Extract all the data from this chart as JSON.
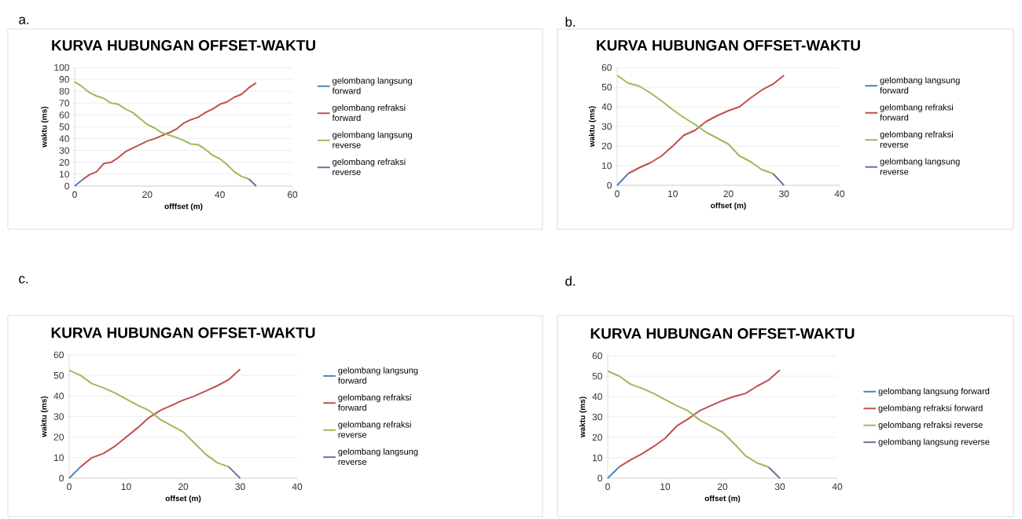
{
  "chart_data": [
    {
      "type": "line",
      "title": "KURVA HUBUNGAN OFFSET-WAKTU",
      "xlabel": "offfset (m)",
      "ylabel": "waktu (ms)",
      "annotations": [
        "a."
      ],
      "xlim": [
        0,
        60
      ],
      "ylim": [
        0,
        100
      ],
      "xticks": [
        0,
        20,
        40,
        60
      ],
      "yticks": [
        0,
        10,
        20,
        30,
        40,
        50,
        60,
        70,
        80,
        90,
        100
      ],
      "grid": "y",
      "legend": "right",
      "series": [
        {
          "name": "gelombang langsung forward",
          "color": "#4f81bd",
          "x": [
            0,
            2
          ],
          "values": [
            0,
            5
          ]
        },
        {
          "name": "gelombang refraksi forward",
          "color": "#c0504d",
          "x": [
            2,
            4,
            6,
            8,
            10,
            12,
            14,
            16,
            18,
            20,
            22,
            24,
            26,
            28,
            30,
            32,
            34,
            36,
            38,
            40,
            42,
            44,
            46,
            48,
            50
          ],
          "values": [
            5,
            9.5,
            12,
            19,
            20,
            24,
            29,
            32,
            35,
            38,
            40,
            42.5,
            45,
            48,
            53,
            56,
            58,
            62,
            65,
            69,
            71,
            75,
            77.5,
            83,
            87
          ]
        },
        {
          "name": "gelombang langsung reverse",
          "color": "#9bbb59",
          "x": [
            0,
            2,
            4,
            6,
            8,
            10,
            12,
            14,
            16,
            18,
            20,
            22,
            24,
            26,
            28,
            30,
            32,
            34,
            36,
            38,
            40,
            42,
            44,
            46,
            48
          ],
          "values": [
            88,
            84,
            79,
            76,
            74,
            70,
            69,
            65,
            62,
            57,
            52,
            49,
            45,
            43,
            41,
            38.5,
            35.5,
            35,
            31,
            26,
            23,
            18,
            12,
            8,
            6
          ]
        },
        {
          "name": "gelombang refraksi reverse",
          "color": "#8064a2",
          "x": [
            48,
            50
          ],
          "values": [
            6,
            0
          ]
        }
      ]
    },
    {
      "type": "line",
      "title": "KURVA HUBUNGAN OFFSET-WAKTU",
      "xlabel": "offset (m)",
      "ylabel": "waktu (ms)",
      "annotations": [
        "b."
      ],
      "xlim": [
        0,
        40
      ],
      "ylim": [
        0,
        60
      ],
      "xticks": [
        0,
        10,
        20,
        30,
        40
      ],
      "yticks": [
        0,
        10,
        20,
        30,
        40,
        50,
        60
      ],
      "grid": "y",
      "legend": "right",
      "series": [
        {
          "name": "gelombang langsung forward",
          "color": "#4f81bd",
          "x": [
            0,
            2
          ],
          "values": [
            0,
            6
          ]
        },
        {
          "name": "gelombang refraksi forward",
          "color": "#c0504d",
          "x": [
            2,
            4,
            6,
            8,
            10,
            12,
            14,
            16,
            18,
            20,
            22,
            24,
            26,
            28,
            30
          ],
          "values": [
            6,
            9,
            11.5,
            15,
            20,
            25.5,
            28,
            32.5,
            35.5,
            38,
            40,
            44.5,
            48.5,
            51.5,
            56
          ]
        },
        {
          "name": "gelombang refraksi reverse",
          "color": "#9bbb59",
          "x": [
            0,
            2,
            4,
            6,
            8,
            10,
            12,
            14,
            16,
            18,
            20,
            22,
            24,
            26,
            28
          ],
          "values": [
            56,
            52,
            50.5,
            47,
            43,
            38.5,
            34.5,
            31,
            27,
            24,
            21,
            15,
            12,
            8,
            6
          ]
        },
        {
          "name": "gelombang langsung reverse",
          "color": "#8064a2",
          "x": [
            28,
            30
          ],
          "values": [
            6,
            0
          ]
        }
      ]
    },
    {
      "type": "line",
      "title": "KURVA HUBUNGAN OFFSET-WAKTU",
      "xlabel": "offset (m)",
      "ylabel": "waktu (ms)",
      "annotations": [
        "c."
      ],
      "xlim": [
        0,
        40
      ],
      "ylim": [
        0,
        60
      ],
      "xticks": [
        0,
        10,
        20,
        30,
        40
      ],
      "yticks": [
        0,
        10,
        20,
        30,
        40,
        50,
        60
      ],
      "grid": "y",
      "legend": "right",
      "series": [
        {
          "name": "gelombang langsung forward",
          "color": "#4f81bd",
          "x": [
            0,
            2
          ],
          "values": [
            0,
            5.5
          ]
        },
        {
          "name": "gelombang refraksi forward",
          "color": "#c0504d",
          "x": [
            2,
            4,
            6,
            8,
            10,
            12,
            14,
            16,
            18,
            20,
            22,
            24,
            26,
            28,
            30
          ],
          "values": [
            5.5,
            10,
            12,
            15.5,
            20,
            24.5,
            29.5,
            33,
            35.5,
            38,
            40,
            42.5,
            45,
            48,
            53
          ]
        },
        {
          "name": "gelombang refraksi reverse",
          "color": "#9bbb59",
          "x": [
            0,
            2,
            4,
            6,
            8,
            10,
            12,
            14,
            16,
            18,
            20,
            22,
            24,
            26,
            28
          ],
          "values": [
            52.5,
            50,
            46,
            44,
            41.5,
            38.5,
            35.5,
            33,
            28.5,
            25.5,
            22.5,
            17,
            11.5,
            7.5,
            5.5
          ]
        },
        {
          "name": "gelombang langsung reverse",
          "color": "#8064a2",
          "x": [
            28,
            30
          ],
          "values": [
            5.5,
            0
          ]
        }
      ]
    },
    {
      "type": "line",
      "title": "KURVA HUBUNGAN OFFSET-WAKTU",
      "xlabel": "offset (m)",
      "ylabel": "waktu (ms)",
      "annotations": [
        "d."
      ],
      "xlim": [
        0,
        40
      ],
      "ylim": [
        0,
        60
      ],
      "xticks": [
        0,
        10,
        20,
        30,
        40
      ],
      "yticks": [
        0,
        10,
        20,
        30,
        40,
        50,
        60
      ],
      "grid": "y",
      "legend": "right",
      "series": [
        {
          "name": "gelombang langsung forward",
          "color": "#4f81bd",
          "x": [
            0,
            2
          ],
          "values": [
            0,
            5.5
          ]
        },
        {
          "name": "gelombang refraksi forward",
          "color": "#c0504d",
          "x": [
            2,
            4,
            6,
            8,
            10,
            12,
            14,
            16,
            18,
            20,
            22,
            24,
            26,
            28,
            30
          ],
          "values": [
            5.5,
            9,
            12,
            15.5,
            19.5,
            25.5,
            29,
            33,
            35.5,
            38,
            40,
            41.5,
            45,
            48,
            53
          ]
        },
        {
          "name": "gelombang refraksi reverse",
          "color": "#9bbb59",
          "x": [
            0,
            2,
            4,
            6,
            8,
            10,
            12,
            14,
            16,
            18,
            20,
            22,
            24,
            26,
            28
          ],
          "values": [
            52.5,
            50,
            46,
            44,
            41.5,
            38.5,
            35.5,
            33,
            28.5,
            25.5,
            22.5,
            17,
            11,
            7.5,
            5.5
          ]
        },
        {
          "name": "gelombang langsung reverse",
          "color": "#8064a2",
          "x": [
            28,
            30
          ],
          "values": [
            5.5,
            0
          ]
        }
      ]
    }
  ]
}
